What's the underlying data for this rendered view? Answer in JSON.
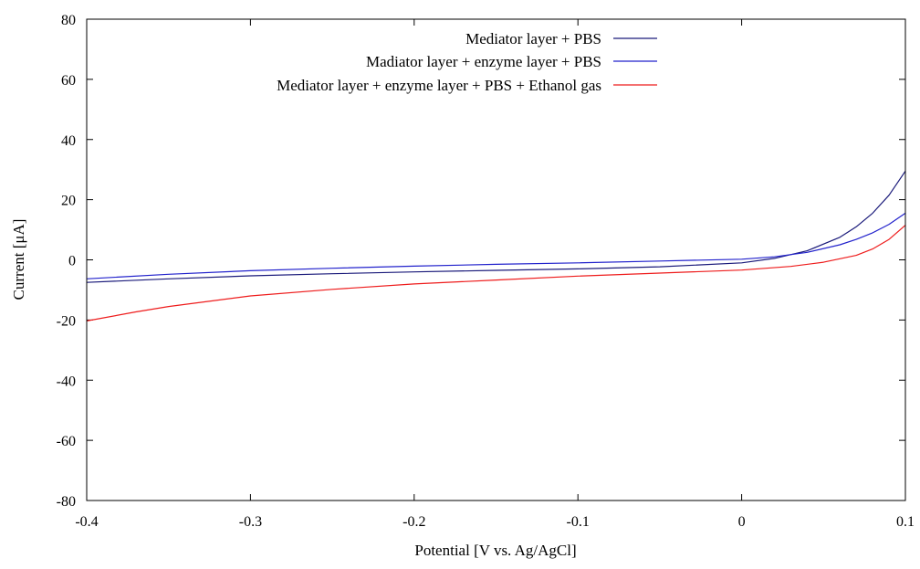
{
  "chart_data": {
    "type": "line",
    "title": "",
    "xlabel": "Potential [V vs. Ag/AgCl]",
    "ylabel": "Current [μA]",
    "xlim": [
      -0.4,
      0.1
    ],
    "ylim": [
      -80,
      80
    ],
    "xticks": [
      -0.4,
      -0.3,
      -0.2,
      -0.1,
      0,
      0.1
    ],
    "xtick_labels": [
      "-0.4",
      "-0.3",
      "-0.2",
      "-0.1",
      "0",
      "0.1"
    ],
    "yticks": [
      -80,
      -60,
      -40,
      -20,
      0,
      20,
      40,
      60,
      80
    ],
    "ytick_labels": [
      "-80",
      "-60",
      "-40",
      "-20",
      "0",
      "20",
      "40",
      "60",
      "80"
    ],
    "grid": false,
    "legend_position": "top-right",
    "series": [
      {
        "name": "Mediator layer + PBS",
        "color": "#1a1a7a",
        "x": [
          -0.4,
          -0.35,
          -0.3,
          -0.25,
          -0.2,
          -0.15,
          -0.1,
          -0.05,
          0,
          0.02,
          0.04,
          0.06,
          0.07,
          0.08,
          0.09,
          0.1
        ],
        "y": [
          -7.5,
          -6.3,
          -5.3,
          -4.6,
          -4.0,
          -3.5,
          -3.0,
          -2.3,
          -1.0,
          0.5,
          3.0,
          7.5,
          11.0,
          15.5,
          21.5,
          29.5
        ]
      },
      {
        "name": "Madiator layer + enzyme layer + PBS",
        "color": "#2222cc",
        "x": [
          -0.4,
          -0.35,
          -0.3,
          -0.25,
          -0.2,
          -0.15,
          -0.1,
          -0.05,
          0,
          0.02,
          0.04,
          0.06,
          0.07,
          0.08,
          0.09,
          0.1
        ],
        "y": [
          -6.3,
          -4.8,
          -3.6,
          -2.8,
          -2.1,
          -1.5,
          -1.0,
          -0.4,
          0.2,
          1.0,
          2.5,
          5.0,
          6.8,
          9.0,
          11.8,
          15.5
        ]
      },
      {
        "name": "Mediator layer + enzyme layer + PBS + Ethanol gas",
        "color": "#ee1c1c",
        "x": [
          -0.4,
          -0.37,
          -0.35,
          -0.3,
          -0.25,
          -0.2,
          -0.15,
          -0.1,
          -0.05,
          0,
          0.03,
          0.05,
          0.07,
          0.08,
          0.09,
          0.1
        ],
        "y": [
          -20.3,
          -17.3,
          -15.5,
          -12.0,
          -9.8,
          -8.0,
          -6.7,
          -5.4,
          -4.4,
          -3.4,
          -2.2,
          -0.8,
          1.5,
          3.6,
          6.8,
          11.5
        ]
      }
    ]
  }
}
